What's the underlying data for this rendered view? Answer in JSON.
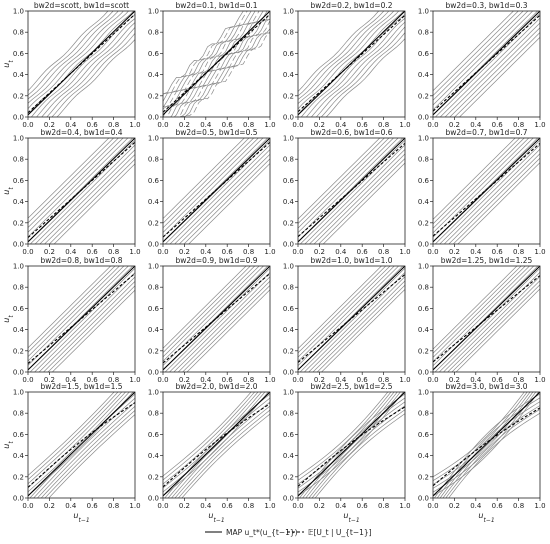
{
  "chart_data": {
    "type": "contour-grid",
    "rows": 4,
    "cols": 4,
    "x_axis": {
      "label": "u_{t−1}",
      "ticks": [
        "0.0",
        "0.2",
        "0.4",
        "0.6",
        "0.8",
        "1.0"
      ],
      "range": [
        0,
        1
      ]
    },
    "y_axis": {
      "label": "u_t",
      "ticks": [
        "0.0",
        "0.2",
        "0.4",
        "0.6",
        "0.8",
        "1.0"
      ],
      "range": [
        0,
        1
      ]
    },
    "panels": [
      {
        "title": "bw2d=scott, bw1d=scott",
        "dashed_end": 0.97
      },
      {
        "title": "bw2d=0.1, bw1d=0.1",
        "dashed_end": 0.97
      },
      {
        "title": "bw2d=0.2, bw1d=0.2",
        "dashed_end": 0.96
      },
      {
        "title": "bw2d=0.3, bw1d=0.3",
        "dashed_end": 0.96
      },
      {
        "title": "bw2d=0.4, bw1d=0.4",
        "dashed_end": 0.96
      },
      {
        "title": "bw2d=0.5, bw1d=0.5",
        "dashed_end": 0.96
      },
      {
        "title": "bw2d=0.6, bw1d=0.6",
        "dashed_end": 0.95
      },
      {
        "title": "bw2d=0.7, bw1d=0.7",
        "dashed_end": 0.95
      },
      {
        "title": "bw2d=0.8, bw1d=0.8",
        "dashed_end": 0.93
      },
      {
        "title": "bw2d=0.9, bw1d=0.9",
        "dashed_end": 0.93
      },
      {
        "title": "bw2d=1.0, bw1d=1.0",
        "dashed_end": 0.92
      },
      {
        "title": "bw2d=1.25, bw1d=1.25",
        "dashed_end": 0.91
      },
      {
        "title": "bw2d=1.5, bw1d=1.5",
        "dashed_end": 0.9
      },
      {
        "title": "bw2d=2.0, bw1d=2.0",
        "dashed_end": 0.89
      },
      {
        "title": "bw2d=2.5, bw1d=2.5",
        "dashed_end": 0.86
      },
      {
        "title": "bw2d=3.0, bw1d=3.0",
        "dashed_end": 0.85
      }
    ],
    "legend": [
      {
        "label": "MAP u_t*(u_{t−1})",
        "style": "solid"
      },
      {
        "label": "𝔼[U_t | U_{t−1}]",
        "style": "dashed"
      }
    ],
    "colors": {
      "contour": "#8a8a8a",
      "map_line": "#000000",
      "expectation_line": "#000000"
    }
  }
}
